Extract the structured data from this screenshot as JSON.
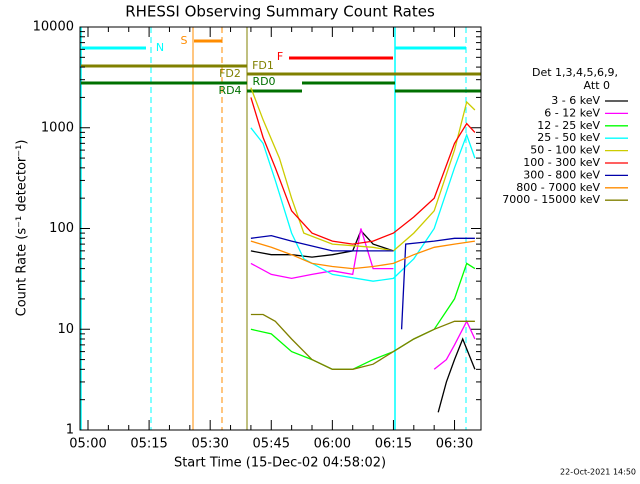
{
  "chart_data": {
    "type": "line",
    "title": "RHESSI Observing Summary Count Rates",
    "xlabel": "Start Time (15-Dec-02 04:58:02)",
    "ylabel": "Count Rate (s⁻¹ detector⁻¹)",
    "legend_title": [
      "Det 1,3,4,5,6,9,",
      "Att 0"
    ],
    "legend": "right",
    "timestamp": "22-Oct-2021 14:50",
    "log_y": true,
    "ylim": [
      1,
      10000
    ],
    "yticks": [
      1,
      10,
      100,
      1000,
      10000
    ],
    "xlim": [
      "04:58:02",
      "06:36:30"
    ],
    "xticks": [
      "05:00",
      "05:15",
      "05:30",
      "05:45",
      "06:00",
      "06:15",
      "06:30"
    ],
    "annotations": [
      "N",
      "S",
      "F",
      "FD1",
      "FD2",
      "RD0",
      "RD4"
    ],
    "series": [
      {
        "name": "3 - 6 keV",
        "color": "#000000",
        "x": [
          "05:40",
          "05:45",
          "05:50",
          "05:55",
          "06:00",
          "06:05",
          "06:07",
          "06:10",
          "06:15",
          "06:17",
          "06:26",
          "06:28",
          "06:30",
          "06:32",
          "06:35"
        ],
        "values": [
          60,
          55,
          55,
          52,
          55,
          60,
          95,
          70,
          60,
          null,
          1.5,
          3,
          5,
          8,
          4
        ]
      },
      {
        "name": "6 - 12 keV",
        "color": "#ff00ff",
        "x": [
          "05:40",
          "05:45",
          "05:50",
          "05:55",
          "06:00",
          "06:05",
          "06:07",
          "06:10",
          "06:15",
          "06:17",
          "06:25",
          "06:28",
          "06:30",
          "06:33",
          "06:35"
        ],
        "values": [
          45,
          35,
          32,
          35,
          38,
          35,
          100,
          40,
          40,
          null,
          4,
          5,
          7,
          12,
          8
        ]
      },
      {
        "name": "12 - 25 keV",
        "color": "#00ff00",
        "x": [
          "05:40",
          "05:45",
          "05:50",
          "05:55",
          "06:00",
          "06:05",
          "06:10",
          "06:15",
          "06:20",
          "06:25",
          "06:30",
          "06:33",
          "06:35"
        ],
        "values": [
          10,
          9,
          6,
          5,
          4,
          4,
          5,
          6,
          8,
          10,
          20,
          45,
          40
        ]
      },
      {
        "name": "25 - 50 keV",
        "color": "#00ffff",
        "x": [
          "05:40",
          "05:43",
          "05:46",
          "05:50",
          "05:53",
          "06:00",
          "06:10",
          "06:15",
          "06:20",
          "06:25",
          "06:30",
          "06:33",
          "06:35"
        ],
        "values": [
          1000,
          700,
          300,
          90,
          50,
          35,
          30,
          32,
          50,
          100,
          400,
          850,
          500
        ]
      },
      {
        "name": "50 - 100 keV",
        "color": "#cccc00",
        "x": [
          "05:40",
          "05:43",
          "05:47",
          "05:50",
          "05:53",
          "06:00",
          "06:10",
          "06:15",
          "06:20",
          "06:25",
          "06:30",
          "06:33",
          "06:35"
        ],
        "values": [
          2500,
          1200,
          500,
          200,
          90,
          70,
          65,
          60,
          90,
          150,
          600,
          1800,
          1500
        ]
      },
      {
        "name": "100 - 300 keV",
        "color": "#ff0000",
        "x": [
          "05:40",
          "05:43",
          "05:46",
          "05:50",
          "05:55",
          "06:00",
          "06:05",
          "06:10",
          "06:15",
          "06:20",
          "06:25",
          "06:30",
          "06:33",
          "06:35"
        ],
        "values": [
          2000,
          800,
          400,
          150,
          90,
          75,
          70,
          75,
          90,
          130,
          200,
          700,
          1100,
          900
        ]
      },
      {
        "name": "300 - 800 keV",
        "color": "#0000aa",
        "x": [
          "05:40",
          "05:45",
          "05:50",
          "06:00",
          "06:10",
          "06:15",
          "06:16",
          "06:17",
          "06:18",
          "06:25",
          "06:30",
          "06:35"
        ],
        "values": [
          80,
          85,
          75,
          60,
          60,
          60,
          null,
          10,
          70,
          75,
          80,
          80
        ]
      },
      {
        "name": "800 - 7000 keV",
        "color": "#ff8c00",
        "x": [
          "05:40",
          "05:45",
          "05:50",
          "05:55",
          "06:00",
          "06:05",
          "06:10",
          "06:15",
          "06:20",
          "06:25",
          "06:30",
          "06:35"
        ],
        "values": [
          75,
          65,
          55,
          45,
          42,
          40,
          42,
          45,
          55,
          65,
          70,
          75
        ]
      },
      {
        "name": "7000 - 15000 keV",
        "color": "#808000",
        "x": [
          "05:40",
          "05:43",
          "05:46",
          "05:50",
          "05:55",
          "06:00",
          "06:05",
          "06:10",
          "06:15",
          "06:20",
          "06:25",
          "06:30",
          "06:35"
        ],
        "values": [
          14,
          14,
          12,
          8,
          5,
          4,
          4,
          4.5,
          6,
          8,
          10,
          12,
          12
        ]
      }
    ]
  }
}
